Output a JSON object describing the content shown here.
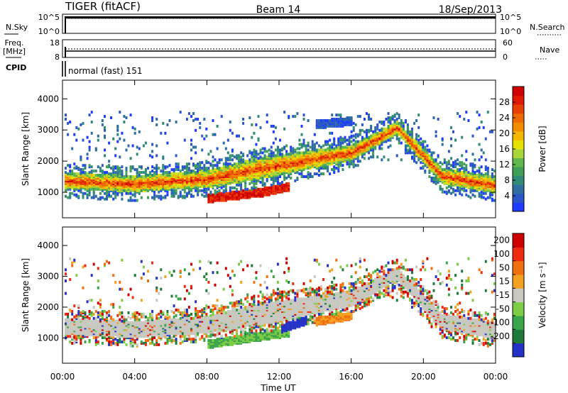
{
  "header": {
    "radar": "TIGER (fitACF)",
    "beam": "Beam 14",
    "date": "18/Sep/2013"
  },
  "strip_panels": {
    "nsky_label": "N.Sky",
    "nsky_ticks": [
      "10^5",
      "10^0"
    ],
    "nsearch_label": "N.Search",
    "nsearch_ticks": [
      "10^5",
      "10^0"
    ],
    "freq_label_line1": "Freq.",
    "freq_label_line2": "[MHz]",
    "freq_ticks": [
      "18",
      "8"
    ],
    "nave_label": "Nave",
    "nave_ticks": [
      "60",
      "0"
    ],
    "cpid_label": "CPID",
    "cpid_value": "normal (fast) 151"
  },
  "chart_data": [
    {
      "type": "heatmap",
      "panel": "power",
      "ylabel": "Slant Range [km]",
      "xlabel": "Time UT",
      "ylim": [
        180,
        4600
      ],
      "y_ticks": [
        "4000",
        "3000",
        "2000",
        "1000"
      ],
      "y_tick_values": [
        4000,
        3000,
        2000,
        1000
      ],
      "x_ticks": [
        "00:00",
        "04:00",
        "08:00",
        "12:00",
        "16:00",
        "20:00",
        "00:00"
      ],
      "x_tick_hours": [
        0,
        4,
        8,
        12,
        16,
        20,
        24
      ],
      "xlim_hours": [
        0,
        24
      ],
      "colorbar": {
        "label": "Power [dB]",
        "tick_labels": [
          "28",
          "24",
          "20",
          "16",
          "12",
          "8",
          "4"
        ],
        "tick_values": [
          28,
          24,
          20,
          16,
          12,
          8,
          4
        ],
        "range": [
          0,
          32
        ],
        "colors": [
          "#1e3cff",
          "#2a56c8",
          "#2e6ea0",
          "#2f8a78",
          "#3f9e58",
          "#5cb84a",
          "#a8d63a",
          "#e6e200",
          "#f5b800",
          "#f28c00",
          "#ee6a00",
          "#e84000",
          "#e01a00",
          "#d00000"
        ]
      },
      "features": [
        {
          "name": "main band",
          "time_hours": [
            0,
            4,
            8,
            10.5,
            13,
            16,
            18.5,
            21,
            24
          ],
          "range_km": [
            1400,
            1300,
            1450,
            1750,
            2000,
            2300,
            3100,
            1550,
            1250
          ],
          "power_db": 22
        },
        {
          "name": "low echo",
          "time_hours": [
            8,
            9.5,
            11,
            12.5
          ],
          "range_km": [
            820,
            920,
            1020,
            1200
          ],
          "power_db": 27
        },
        {
          "name": "upper patch",
          "time_hours": [
            14,
            16
          ],
          "range_km": [
            3200,
            3300
          ],
          "power_db": 8
        }
      ]
    },
    {
      "type": "heatmap",
      "panel": "velocity",
      "ylabel": "Slant Range [km]",
      "xlabel": "Time UT",
      "ylim": [
        180,
        4600
      ],
      "y_ticks": [
        "4000",
        "3000",
        "2000",
        "1000"
      ],
      "y_tick_values": [
        4000,
        3000,
        2000,
        1000
      ],
      "x_ticks": [
        "00:00",
        "04:00",
        "08:00",
        "12:00",
        "16:00",
        "20:00",
        "00:00"
      ],
      "x_tick_hours": [
        0,
        4,
        8,
        12,
        16,
        20,
        24
      ],
      "xlim_hours": [
        0,
        24
      ],
      "colorbar": {
        "label": "Velocity [m s⁻¹]",
        "tick_labels": [
          "200",
          "100",
          "50",
          "15",
          "-15",
          "-50",
          "-100",
          "-200"
        ],
        "tick_values": [
          200,
          100,
          50,
          15,
          -15,
          -50,
          -100,
          -200
        ],
        "colors": [
          "#2432c8",
          "#1e7a3a",
          "#3aa44a",
          "#7ccc44",
          "#c8c8c0",
          "#f2a020",
          "#f07010",
          "#ee2a10",
          "#d00000"
        ]
      },
      "features": [
        {
          "name": "ground scatter band",
          "time_hours": [
            0,
            4,
            8,
            10.5,
            13,
            16,
            18.5,
            21,
            24
          ],
          "range_km": [
            1400,
            1300,
            1450,
            1750,
            2000,
            2300,
            3100,
            1550,
            1250
          ],
          "velocity_ms": 0
        },
        {
          "name": "low echo",
          "time_hours": [
            8,
            12.5
          ],
          "range_km": [
            820,
            1200
          ],
          "velocity_ms": 40
        },
        {
          "name": "blue patch",
          "time_hours": [
            12,
            13.5
          ],
          "range_km": [
            1300,
            1600
          ],
          "velocity_ms": 150
        },
        {
          "name": "orange patch",
          "time_hours": [
            14,
            16
          ],
          "range_km": [
            1550,
            1750
          ],
          "velocity_ms": -60
        }
      ]
    }
  ]
}
